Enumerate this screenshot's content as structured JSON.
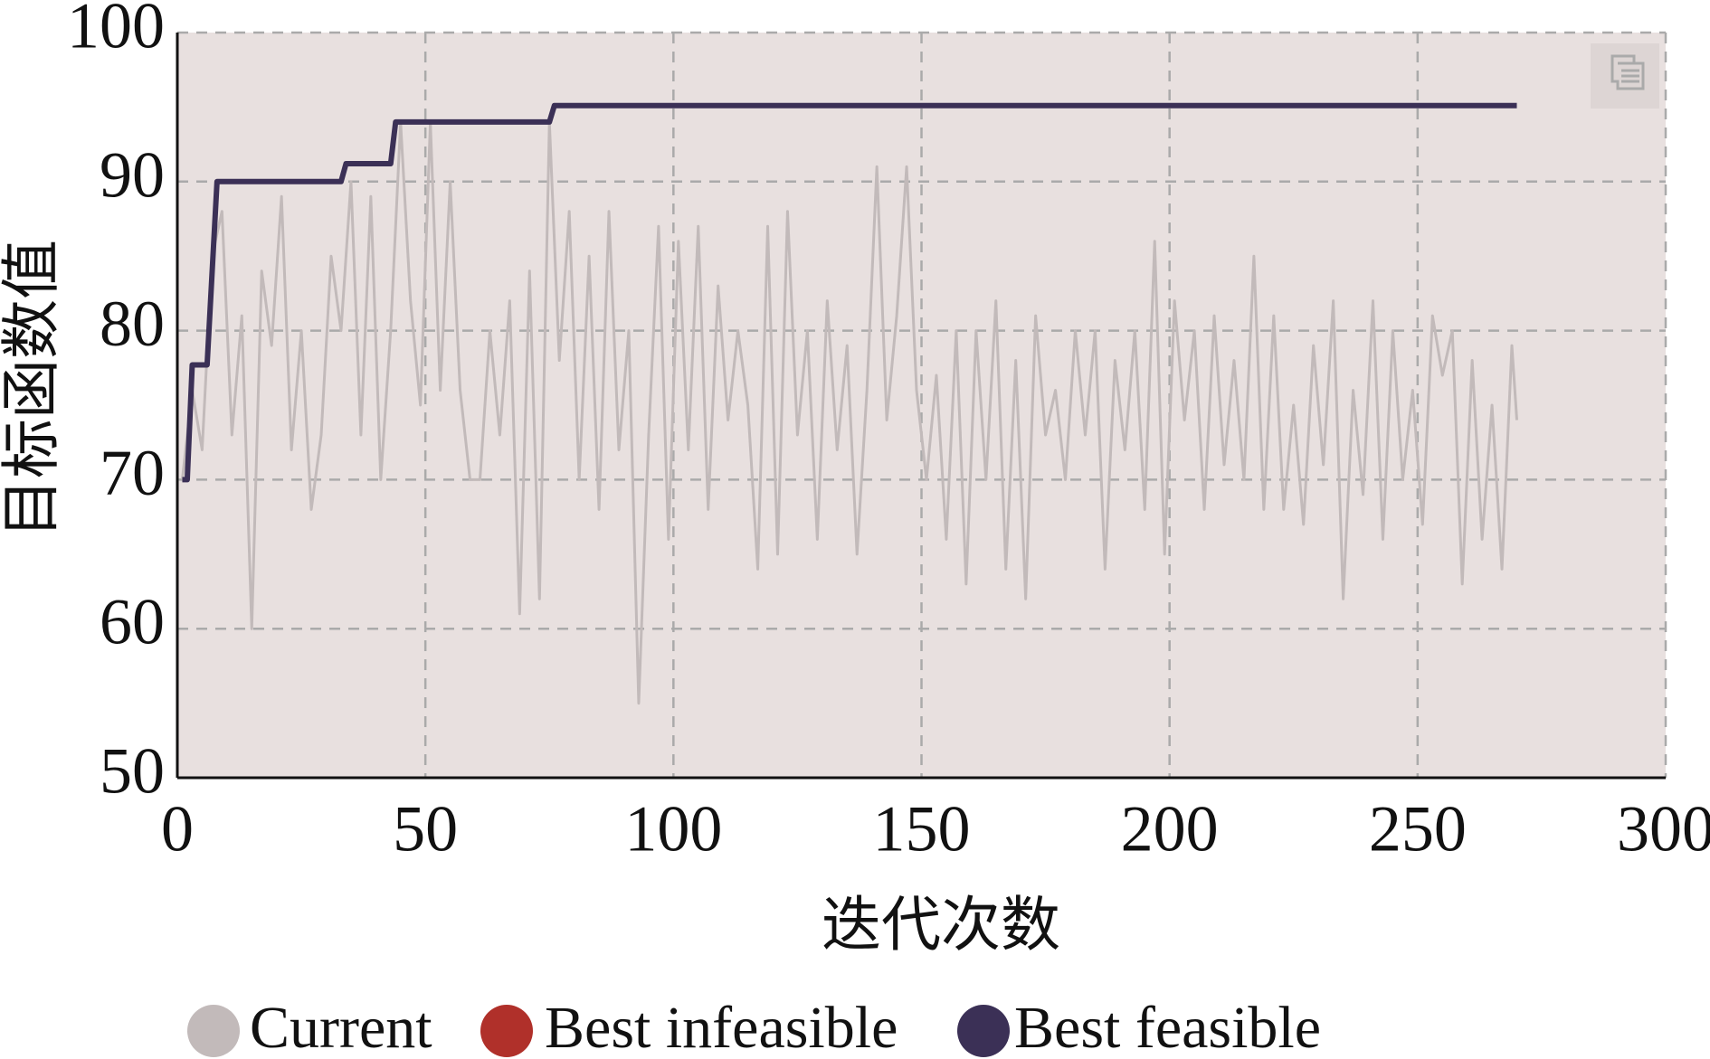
{
  "chart_data": {
    "type": "line",
    "xlabel": "迭代次数",
    "ylabel": "目标函数值",
    "xlim": [
      0,
      300
    ],
    "xticks": [
      0,
      50,
      100,
      150,
      200,
      250,
      300
    ],
    "ylim": [
      50,
      100
    ],
    "yticks": [
      50,
      60,
      70,
      80,
      90,
      100
    ],
    "grid": true,
    "legend": "bottom",
    "background": "#e8e0df",
    "series": [
      {
        "name": "Current",
        "color": "#c2baba",
        "x": [
          1,
          3,
          5,
          7,
          9,
          11,
          13,
          15,
          17,
          19,
          21,
          23,
          25,
          27,
          29,
          31,
          33,
          35,
          37,
          39,
          41,
          43,
          45,
          47,
          49,
          51,
          53,
          55,
          57,
          59,
          61,
          63,
          65,
          67,
          69,
          71,
          73,
          75,
          77,
          79,
          81,
          83,
          85,
          87,
          89,
          91,
          93,
          95,
          97,
          99,
          101,
          103,
          105,
          107,
          109,
          111,
          113,
          115,
          117,
          119,
          121,
          123,
          125,
          127,
          129,
          131,
          133,
          135,
          137,
          139,
          141,
          143,
          145,
          147,
          149,
          151,
          153,
          155,
          157,
          159,
          161,
          163,
          165,
          167,
          169,
          171,
          173,
          175,
          177,
          179,
          181,
          183,
          185,
          187,
          189,
          191,
          193,
          195,
          197,
          199,
          201,
          203,
          205,
          207,
          209,
          211,
          213,
          215,
          217,
          219,
          221,
          223,
          225,
          227,
          229,
          231,
          233,
          235,
          237,
          239,
          241,
          243,
          245,
          247,
          249,
          251,
          253,
          255,
          257,
          259,
          261,
          263,
          265,
          267,
          269,
          270
        ],
        "values": [
          70,
          76,
          72,
          85,
          88,
          73,
          81,
          60,
          84,
          79,
          89,
          72,
          80,
          68,
          73,
          85,
          80,
          90,
          73,
          89,
          70,
          80,
          94,
          82,
          75,
          94,
          76,
          90,
          76,
          70,
          70,
          80,
          73,
          82,
          61,
          84,
          62,
          94,
          78,
          88,
          70,
          85,
          68,
          88,
          72,
          80,
          55,
          73,
          87,
          66,
          86,
          72,
          87,
          68,
          83,
          74,
          80,
          75,
          64,
          87,
          65,
          88,
          73,
          80,
          66,
          82,
          72,
          79,
          65,
          76,
          91,
          74,
          81,
          91,
          76,
          70,
          77,
          66,
          80,
          63,
          80,
          70,
          82,
          64,
          78,
          62,
          81,
          73,
          76,
          70,
          80,
          73,
          80,
          64,
          78,
          72,
          80,
          68,
          86,
          65,
          82,
          74,
          80,
          68,
          81,
          71,
          78,
          70,
          85,
          68,
          81,
          68,
          75,
          67,
          79,
          71,
          82,
          62,
          76,
          69,
          82,
          66,
          80,
          70,
          76,
          67,
          81,
          77,
          80,
          63,
          78,
          66,
          75,
          64,
          79,
          74
        ]
      },
      {
        "name": "Best infeasible",
        "color": "#b0302a",
        "x": [],
        "values": []
      },
      {
        "name": "Best feasible",
        "color": "#3b3056",
        "x": [
          1,
          2,
          3,
          6,
          8,
          33,
          34,
          43,
          44,
          75,
          76,
          270
        ],
        "values": [
          70,
          70,
          77.7,
          77.7,
          90,
          90,
          91.2,
          91.2,
          94,
          94,
          95.1,
          95.1
        ]
      }
    ]
  }
}
